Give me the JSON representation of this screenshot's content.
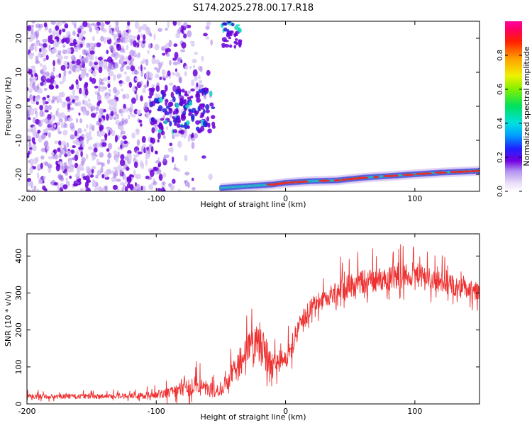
{
  "figure": {
    "title": "S174.2025.278.00.17.R18"
  },
  "colors": {
    "snr_line": "#ee3030",
    "ridge_core": "#e03030",
    "ridge_mid": "#10d8c0",
    "ridge_outer": "#2020d8",
    "speckle_strong": "#6a00d8",
    "speckle_mid": "#a070e8",
    "speckle_faint": "#d8c8f4"
  },
  "chart_data": [
    {
      "type": "heatmap",
      "name": "spectrogram",
      "title": "S174.2025.278.00.17.R18",
      "xlabel": "Height of straight line (km)",
      "ylabel": "Frequency (Hz)",
      "xlim": [
        -200,
        150
      ],
      "ylim": [
        -25,
        25
      ],
      "xticks": [
        -200,
        -100,
        0,
        100
      ],
      "xtick_labels": [
        "-200",
        "-100",
        "0",
        "100"
      ],
      "yticks": [
        -20,
        -10,
        0,
        10,
        20
      ],
      "ytick_labels": [
        "-20",
        "-10",
        "0",
        "10",
        "20"
      ],
      "colorbar": {
        "label": "Normalized spectral amplitude",
        "range": [
          0,
          1
        ],
        "ticks": [
          0.0,
          0.2,
          0.4,
          0.6,
          0.8
        ],
        "tick_labels": [
          "0.0",
          "0.2",
          "0.4",
          "0.6",
          "0.8"
        ]
      },
      "features": {
        "noise_region_x": [
          -200,
          -55
        ],
        "ridge": {
          "x": [
            -50,
            -30,
            -10,
            0,
            20,
            40,
            60,
            80,
            100,
            120,
            150
          ],
          "y": [
            -24,
            -23.5,
            -23,
            -22.5,
            -22,
            -21.8,
            -21,
            -20.5,
            -20,
            -19.5,
            -19
          ]
        },
        "upper_blob": {
          "x": [
            -50,
            -35
          ],
          "y": [
            17,
            25
          ]
        },
        "center_blob": {
          "x": [
            -105,
            -55
          ],
          "y": [
            -8,
            5
          ]
        }
      }
    },
    {
      "type": "line",
      "name": "snr",
      "xlabel": "Height of straight line (km)",
      "ylabel": "SNR (10 * v/v)",
      "xlim": [
        -200,
        150
      ],
      "ylim": [
        0,
        460
      ],
      "xticks": [
        -200,
        -100,
        0,
        100
      ],
      "xtick_labels": [
        "-200",
        "-100",
        "0",
        "100"
      ],
      "yticks": [
        0,
        100,
        200,
        300,
        400
      ],
      "ytick_labels": [
        "0",
        "100",
        "200",
        "300",
        "400"
      ],
      "envelope": {
        "x": [
          -200,
          -150,
          -110,
          -90,
          -70,
          -60,
          -50,
          -40,
          -30,
          -20,
          -10,
          0,
          10,
          20,
          30,
          40,
          50,
          60,
          80,
          100,
          120,
          150
        ],
        "mean": [
          20,
          20,
          22,
          30,
          50,
          40,
          30,
          90,
          140,
          160,
          110,
          120,
          200,
          270,
          280,
          310,
          320,
          330,
          340,
          350,
          330,
          300
        ],
        "amp": [
          12,
          12,
          15,
          25,
          50,
          40,
          20,
          60,
          80,
          110,
          60,
          50,
          60,
          50,
          40,
          60,
          60,
          60,
          60,
          60,
          50,
          50
        ]
      }
    }
  ]
}
